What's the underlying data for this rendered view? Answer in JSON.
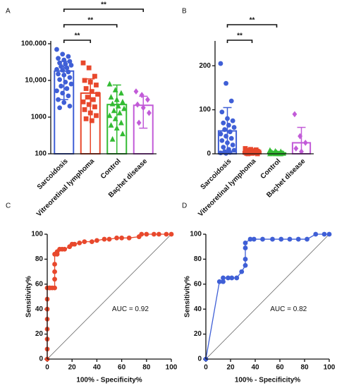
{
  "chart_data": [
    {
      "type": "bar",
      "label": "A",
      "log": true,
      "categories": [
        "Sarcoidosis",
        "Vitreoretinal lymphoma",
        "Control",
        "Baçhet disease"
      ],
      "colors": [
        "#3f5fd6",
        "#e8482c",
        "#33bb33",
        "#c25bd8"
      ],
      "markers": [
        "circle",
        "square",
        "triangle",
        "diamond"
      ],
      "values": [
        18000,
        4500,
        2200,
        2100
      ],
      "errors": [
        15000,
        6500,
        5300,
        1600
      ],
      "points": [
        [
          70000,
          52000,
          45000,
          40000,
          36000,
          33000,
          30000,
          28000,
          26000,
          24000,
          22000,
          20000,
          19000,
          17000,
          15000,
          14000,
          12000,
          10500,
          9000,
          8000,
          7000,
          6000,
          5200,
          4500,
          3800,
          3000,
          2500,
          2000,
          1800
        ],
        [
          30000,
          22000,
          13000,
          10000,
          9000,
          7500,
          6000,
          5000,
          4200,
          3500,
          3000,
          2600,
          2200,
          1900,
          1600,
          1300,
          1100,
          900,
          800
        ],
        [
          8000,
          5500,
          4500,
          3500,
          3000,
          2600,
          2300,
          2000,
          1700,
          1500,
          1300,
          1100,
          900,
          700,
          600,
          500,
          350,
          250
        ],
        [
          5000,
          4000,
          3000,
          2200,
          1800,
          1300,
          700
        ]
      ],
      "ylim": [
        100,
        100000
      ],
      "yticks": [
        100,
        1000,
        {
          "value": 10000,
          "label": "10,000"
        },
        {
          "value": 100000,
          "label": "100.000"
        }
      ],
      "comparisons": [
        {
          "label": "**",
          "pair": [
            0,
            1
          ]
        },
        {
          "label": "**",
          "pair": [
            0,
            2
          ]
        },
        {
          "label": "**",
          "pair": [
            0,
            3
          ]
        }
      ]
    },
    {
      "type": "bar",
      "label": "B",
      "log": false,
      "categories": [
        "Sarcoidosis",
        "Vitreoretinal lymphoma",
        "Control",
        "Baçhet disease"
      ],
      "colors": [
        "#3f5fd6",
        "#e8482c",
        "#33bb33",
        "#c25bd8"
      ],
      "markers": [
        "circle",
        "square",
        "triangle",
        "diamond"
      ],
      "values": [
        52,
        5,
        2,
        25
      ],
      "errors": [
        53,
        5,
        3,
        35
      ],
      "points": [
        [
          205,
          160,
          120,
          95,
          80,
          75,
          70,
          65,
          60,
          55,
          50,
          45,
          40,
          35,
          30,
          25,
          20,
          15,
          10,
          8,
          5,
          3,
          2,
          1
        ],
        [
          12,
          10,
          9,
          8,
          7,
          6,
          5,
          5,
          4,
          4,
          3,
          3,
          2,
          2,
          1,
          1,
          0,
          0
        ],
        [
          8,
          6,
          5,
          4,
          3,
          2,
          2,
          1,
          1,
          1,
          0,
          0,
          0,
          0
        ],
        [
          90,
          40,
          25,
          12,
          5
        ]
      ],
      "ylim": [
        0,
        250
      ],
      "yticks": [
        0,
        100,
        200
      ],
      "comparisons": [
        {
          "label": "**",
          "pair": [
            0,
            1
          ]
        },
        {
          "label": "**",
          "pair": [
            0,
            2
          ]
        }
      ]
    },
    {
      "type": "line",
      "label": "C",
      "color": "#e8482c",
      "x": [
        0,
        0,
        0,
        0,
        0,
        0,
        0,
        0,
        2,
        2,
        4,
        6,
        6,
        6,
        6,
        6,
        8,
        8,
        10,
        12,
        14,
        18,
        20,
        22,
        26,
        30,
        36,
        40,
        46,
        50,
        56,
        60,
        66,
        74,
        76,
        80,
        86,
        90,
        96,
        100
      ],
      "y": [
        0,
        8,
        16,
        24,
        32,
        40,
        48,
        57,
        57,
        57,
        57,
        57,
        64,
        70,
        76,
        84,
        84,
        86,
        88,
        88,
        88,
        90,
        92,
        92,
        93,
        94,
        94,
        95,
        96,
        96,
        97,
        97,
        97,
        98,
        100,
        100,
        100,
        100,
        100,
        100
      ],
      "xlim": [
        0,
        100
      ],
      "ylim": [
        0,
        100
      ],
      "xticks": [
        0,
        20,
        40,
        60,
        80,
        100
      ],
      "yticks": [
        0,
        20,
        40,
        60,
        80,
        100
      ],
      "xlabel": "100% - Specificity%",
      "ylabel": "Sensitivity%",
      "annotation": "AUC = 0.92"
    },
    {
      "type": "line",
      "label": "D",
      "color": "#3f5fd6",
      "x": [
        0,
        11,
        14,
        14,
        18,
        21,
        25,
        29,
        32,
        32,
        32,
        32,
        36,
        39,
        46,
        54,
        61,
        68,
        75,
        82,
        89,
        96,
        100
      ],
      "y": [
        0,
        62,
        62,
        65,
        65,
        65,
        65,
        70,
        75,
        80,
        89,
        93,
        96,
        96,
        96,
        96,
        96,
        96,
        96,
        96,
        100,
        100,
        100
      ],
      "xlim": [
        0,
        100
      ],
      "ylim": [
        0,
        100
      ],
      "xticks": [
        0,
        20,
        40,
        60,
        80,
        100
      ],
      "yticks": [
        0,
        20,
        40,
        60,
        80,
        100
      ],
      "xlabel": "100% - Specificity%",
      "ylabel": "Sensitivity%",
      "annotation": "AUC = 0.82"
    }
  ]
}
